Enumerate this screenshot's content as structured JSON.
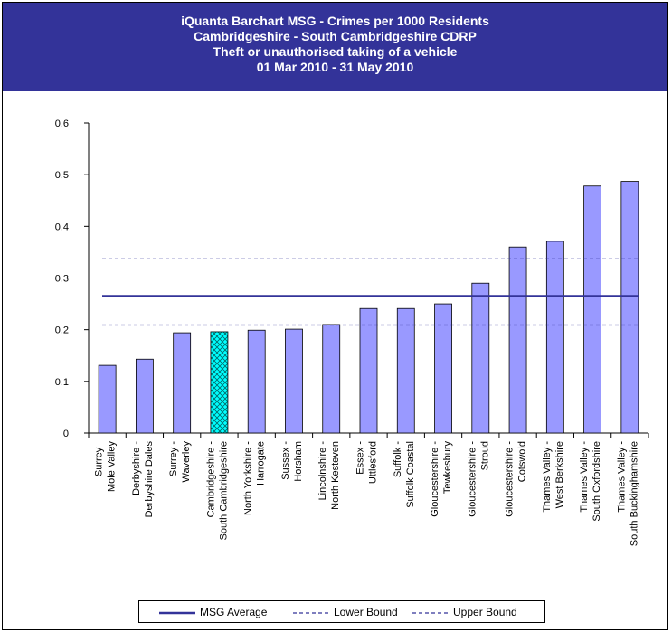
{
  "header": {
    "line1": "iQuanta Barchart MSG - Crimes per 1000 Residents",
    "line2": "Cambridgeshire - South Cambridgeshire CDRP",
    "line3": "Theft or unauthorised taking of a vehicle",
    "line4": "01 Mar 2010 - 31 May 2010"
  },
  "legend": {
    "average": "MSG Average",
    "lower": "Lower Bound",
    "upper": "Upper Bound"
  },
  "colors": {
    "header_bg": "#333399",
    "bar_fill": "#9999FF",
    "highlight_fill": "#00FFFF",
    "average_line": "#333399",
    "bound_line": "#333399"
  },
  "chart_data": {
    "type": "bar",
    "categories": [
      [
        "Surrey -",
        "Mole Valley"
      ],
      [
        "Derbyshire -",
        "Derbyshire Dales"
      ],
      [
        "Surrey -",
        "Waverley"
      ],
      [
        "Cambridgeshire -",
        "South Cambridgeshire"
      ],
      [
        "North Yorkshire -",
        "Harrogate"
      ],
      [
        "Sussex -",
        "Horsham"
      ],
      [
        "Lincolnshire -",
        "North Kesteven"
      ],
      [
        "Essex -",
        "Uttlesford"
      ],
      [
        "Suffolk -",
        "Suffolk Coastal"
      ],
      [
        "Gloucestershire -",
        "Tewkesbury"
      ],
      [
        "Gloucestershire -",
        "Stroud"
      ],
      [
        "Gloucestershire -",
        "Cotswold"
      ],
      [
        "Thames Valley -",
        "West Berkshire"
      ],
      [
        "Thames Valley -",
        "South Oxfordshire"
      ],
      [
        "Thames Valley -",
        "South Buckinghamshire"
      ]
    ],
    "values": [
      0.131,
      0.143,
      0.194,
      0.196,
      0.199,
      0.201,
      0.21,
      0.241,
      0.241,
      0.25,
      0.29,
      0.36,
      0.371,
      0.478,
      0.487
    ],
    "highlight_index": 3,
    "msg_average": 0.265,
    "lower_bound": 0.209,
    "upper_bound": 0.337,
    "ylim": [
      0,
      0.6
    ],
    "yticks": [
      "0",
      "0.1",
      "0.2",
      "0.3",
      "0.4",
      "0.5",
      "0.6"
    ],
    "legend_position": "bottom"
  }
}
